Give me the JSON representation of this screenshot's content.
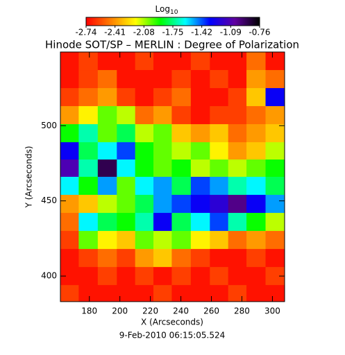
{
  "chart_data": {
    "type": "heatmap",
    "title": "Hinode SOT/SP – MERLIN : Degree of Polarization",
    "colorbar_label": "Log",
    "colorbar_label_sub": "10",
    "xlabel": "X (Arcseconds)",
    "ylabel": "Y (Arcseconds)",
    "footer": "9-Feb-2010 06:15:05.524",
    "clim": [
      -2.74,
      -0.76
    ],
    "cticks": [
      -2.74,
      -2.41,
      -2.08,
      -1.75,
      -1.42,
      -1.09,
      -0.76
    ],
    "colorscale": [
      "#ff0000",
      "#ff8000",
      "#ffff00",
      "#00ff00",
      "#00ffff",
      "#0000ff",
      "#6000a0",
      "#000000"
    ],
    "xlim": [
      161,
      308
    ],
    "ylim": [
      383,
      549
    ],
    "xticks": [
      180,
      200,
      220,
      240,
      260,
      280,
      300
    ],
    "yticks": [
      400,
      450,
      500
    ],
    "x": [
      167,
      179,
      192,
      204,
      216,
      228,
      240,
      253,
      265,
      277,
      289,
      302
    ],
    "y": [
      543,
      531,
      519,
      507,
      495,
      483,
      472,
      460,
      448,
      436,
      424,
      412,
      400,
      388
    ],
    "z": [
      [
        -2.7,
        -2.6,
        -2.7,
        -2.7,
        -2.6,
        -2.7,
        -2.7,
        -2.6,
        -2.7,
        -2.7,
        -2.5,
        -2.7
      ],
      [
        -2.7,
        -2.6,
        -2.5,
        -2.7,
        -2.7,
        -2.7,
        -2.6,
        -2.7,
        -2.6,
        -2.7,
        -2.4,
        -2.5
      ],
      [
        -2.6,
        -2.5,
        -2.4,
        -2.6,
        -2.7,
        -2.6,
        -2.5,
        -2.7,
        -2.7,
        -2.6,
        -2.3,
        -1.3
      ],
      [
        -2.4,
        -2.2,
        -2.0,
        -2.1,
        -2.5,
        -2.4,
        -2.6,
        -2.7,
        -2.6,
        -2.6,
        -2.5,
        -2.4
      ],
      [
        -1.9,
        -1.7,
        -2.0,
        -1.8,
        -2.1,
        -2.0,
        -2.3,
        -2.4,
        -2.3,
        -2.5,
        -2.4,
        -2.3
      ],
      [
        -1.3,
        -1.8,
        -1.6,
        -1.4,
        -1.9,
        -2.0,
        -2.1,
        -2.0,
        -2.2,
        -2.4,
        -2.3,
        -2.1
      ],
      [
        -1.1,
        -1.7,
        -0.9,
        -1.6,
        -1.9,
        -2.0,
        -1.9,
        -2.1,
        -2.0,
        -2.1,
        -2.0,
        -1.9
      ],
      [
        -1.6,
        -1.9,
        -1.5,
        -2.0,
        -1.6,
        -1.5,
        -1.8,
        -1.4,
        -1.5,
        -1.7,
        -1.6,
        -1.8
      ],
      [
        -2.4,
        -2.3,
        -2.1,
        -2.0,
        -1.8,
        -1.5,
        -1.4,
        -1.3,
        -1.2,
        -1.0,
        -1.3,
        -1.5
      ],
      [
        -2.5,
        -1.6,
        -1.8,
        -1.9,
        -1.7,
        -1.3,
        -1.8,
        -1.6,
        -1.4,
        -1.7,
        -1.9,
        -2.1
      ],
      [
        -2.6,
        -2.0,
        -2.2,
        -2.3,
        -2.0,
        -2.1,
        -2.0,
        -2.2,
        -2.3,
        -2.5,
        -2.4,
        -2.5
      ],
      [
        -2.7,
        -2.6,
        -2.5,
        -2.6,
        -2.4,
        -2.3,
        -2.5,
        -2.6,
        -2.7,
        -2.7,
        -2.6,
        -2.7
      ],
      [
        -2.7,
        -2.7,
        -2.6,
        -2.7,
        -2.6,
        -2.7,
        -2.6,
        -2.7,
        -2.6,
        -2.7,
        -2.7,
        -2.6
      ],
      [
        -2.6,
        -2.7,
        -2.7,
        -2.7,
        -2.7,
        -2.6,
        -2.7,
        -2.7,
        -2.7,
        -2.6,
        -2.7,
        -2.7
      ]
    ]
  }
}
